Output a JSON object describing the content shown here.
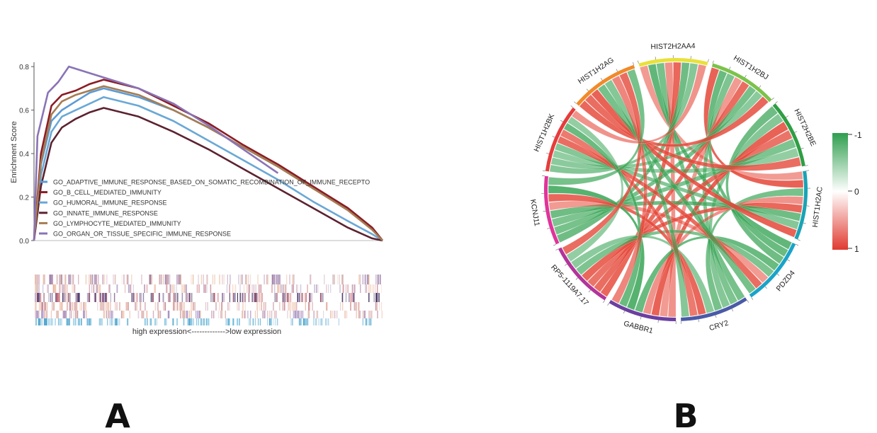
{
  "panels": {
    "a_label": "A",
    "b_label": "B"
  },
  "chart_data": [
    {
      "type": "line",
      "ylabel": "Enrichment Score",
      "ylim": [
        0,
        0.82
      ],
      "yticks": [
        "0.0",
        "0.2",
        "0.4",
        "0.6",
        "0.8"
      ],
      "x_axis_caption": "high expression<------------->low expression",
      "legend_position": "bottom-left",
      "series": [
        {
          "name": "GO_ADAPTIVE_IMMUNE_RESPONSE_BASED_ON_SOMATIC_RECOMBINATION_OF_IMMUNE_RECEPTO",
          "color": "#5b9bd5",
          "x": [
            0,
            0.02,
            0.05,
            0.08,
            0.12,
            0.16,
            0.2,
            0.3,
            0.4,
            0.5,
            0.6,
            0.7,
            0.8,
            0.9,
            0.97,
            1.0
          ],
          "values": [
            0.0,
            0.35,
            0.55,
            0.6,
            0.64,
            0.68,
            0.7,
            0.66,
            0.6,
            0.52,
            0.43,
            0.34,
            0.24,
            0.15,
            0.06,
            0.0
          ]
        },
        {
          "name": "GO_B_CELL_MEDIATED_IMMUNITY",
          "color": "#8b1c24",
          "x": [
            0,
            0.02,
            0.05,
            0.08,
            0.12,
            0.16,
            0.2,
            0.3,
            0.4,
            0.5,
            0.6,
            0.7,
            0.8,
            0.9,
            0.97,
            1.0
          ],
          "values": [
            0.0,
            0.4,
            0.62,
            0.67,
            0.69,
            0.72,
            0.74,
            0.7,
            0.62,
            0.54,
            0.44,
            0.35,
            0.25,
            0.15,
            0.06,
            0.0
          ]
        },
        {
          "name": "GO_HUMORAL_IMMUNE_RESPONSE",
          "color": "#6aa8d6",
          "x": [
            0,
            0.02,
            0.05,
            0.08,
            0.12,
            0.16,
            0.2,
            0.3,
            0.4,
            0.5,
            0.6,
            0.7,
            0.8,
            0.9,
            0.97,
            1.0
          ],
          "values": [
            0.0,
            0.3,
            0.5,
            0.57,
            0.6,
            0.63,
            0.66,
            0.62,
            0.55,
            0.46,
            0.37,
            0.28,
            0.18,
            0.09,
            0.03,
            0.0
          ]
        },
        {
          "name": "GO_INNATE_IMMUNE_RESPONSE",
          "color": "#5c2230",
          "x": [
            0,
            0.02,
            0.05,
            0.08,
            0.12,
            0.16,
            0.2,
            0.3,
            0.4,
            0.5,
            0.6,
            0.7,
            0.8,
            0.9,
            0.97,
            1.0
          ],
          "values": [
            0.0,
            0.25,
            0.45,
            0.52,
            0.56,
            0.59,
            0.61,
            0.57,
            0.5,
            0.42,
            0.33,
            0.24,
            0.15,
            0.06,
            0.01,
            0.0
          ]
        },
        {
          "name": "GO_LYMPHOCYTE_MEDIATED_IMMUNITY",
          "color": "#a67c52",
          "x": [
            0,
            0.02,
            0.05,
            0.08,
            0.12,
            0.16,
            0.2,
            0.3,
            0.4,
            0.5,
            0.6,
            0.7,
            0.8,
            0.9,
            0.97,
            1.0
          ],
          "values": [
            0.0,
            0.36,
            0.58,
            0.64,
            0.67,
            0.69,
            0.71,
            0.67,
            0.6,
            0.52,
            0.43,
            0.34,
            0.24,
            0.14,
            0.05,
            0.0
          ]
        },
        {
          "name": "GO_ORGAN_OR_TISSUE_SPECIFIC_IMMUNE_RESPONSE",
          "color": "#8a73b6",
          "x": [
            0,
            0.01,
            0.04,
            0.07,
            0.1,
            0.16,
            0.2,
            0.3,
            0.4,
            0.5,
            0.6,
            0.7
          ],
          "values": [
            0.0,
            0.48,
            0.68,
            0.73,
            0.8,
            0.77,
            0.75,
            0.7,
            0.63,
            0.53,
            0.42,
            0.31
          ]
        }
      ]
    },
    {
      "type": "chord",
      "genes": [
        "HIST2H2AA4",
        "HIST1H2BJ",
        "HIST2H2BE",
        "HIST1H2AC",
        "PDZD4",
        "CRY2",
        "GABBR1",
        "RP5-1119A7.17",
        "KCNJ11",
        "HIST1H2BK",
        "HIST1H2AG"
      ],
      "gene_colors": [
        "#e8e13a",
        "#7cc24a",
        "#2f9e44",
        "#1aa3b5",
        "#1aa3c9",
        "#4a5aa8",
        "#6b3fa0",
        "#b2349a",
        "#e0349a",
        "#e63c3c",
        "#f08a2a"
      ],
      "colorbar": {
        "ticks": [
          "-1",
          "0",
          "1"
        ],
        "low_color": "#2e9e4e",
        "mid_color": "#ffffff",
        "high_color": "#e03a30"
      },
      "links": [
        [
          0,
          3,
          1
        ],
        [
          0,
          4,
          -1
        ],
        [
          0,
          5,
          -1
        ],
        [
          0,
          6,
          1
        ],
        [
          0,
          7,
          1
        ],
        [
          0,
          8,
          -1
        ],
        [
          0,
          9,
          -1
        ],
        [
          1,
          3,
          1
        ],
        [
          1,
          4,
          -1
        ],
        [
          1,
          5,
          -1
        ],
        [
          1,
          6,
          1
        ],
        [
          1,
          7,
          1
        ],
        [
          1,
          8,
          -1
        ],
        [
          1,
          9,
          -1
        ],
        [
          1,
          10,
          1
        ],
        [
          2,
          4,
          -1
        ],
        [
          2,
          5,
          -1
        ],
        [
          2,
          6,
          1
        ],
        [
          2,
          7,
          1
        ],
        [
          2,
          8,
          -1
        ],
        [
          2,
          9,
          -1
        ],
        [
          2,
          10,
          1
        ],
        [
          3,
          5,
          -1
        ],
        [
          3,
          6,
          1
        ],
        [
          3,
          7,
          1
        ],
        [
          3,
          8,
          -1
        ],
        [
          3,
          9,
          -1
        ],
        [
          3,
          10,
          1
        ],
        [
          4,
          6,
          -1
        ],
        [
          4,
          7,
          -1
        ],
        [
          4,
          8,
          1
        ],
        [
          4,
          9,
          1
        ],
        [
          4,
          10,
          -1
        ],
        [
          5,
          7,
          -1
        ],
        [
          5,
          8,
          1
        ],
        [
          5,
          9,
          1
        ],
        [
          5,
          10,
          -1
        ],
        [
          6,
          8,
          -1
        ],
        [
          6,
          9,
          -1
        ],
        [
          6,
          10,
          1
        ],
        [
          7,
          9,
          -1
        ],
        [
          7,
          10,
          1
        ],
        [
          8,
          10,
          -1
        ],
        [
          9,
          0,
          1
        ]
      ]
    }
  ]
}
